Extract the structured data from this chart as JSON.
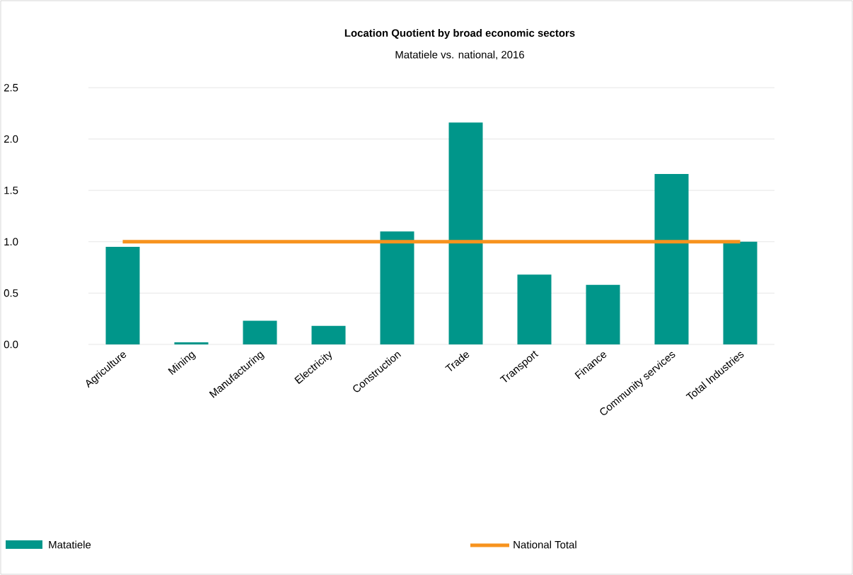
{
  "chart_data": {
    "type": "bar",
    "title": "Location Quotient by broad economic sectors",
    "subtitle": "Matatiele vs. national, 2016",
    "categories": [
      "Agriculture",
      "Mining",
      "Manufacturing",
      "Electricity",
      "Construction",
      "Trade",
      "Transport",
      "Finance",
      "Community services",
      "Total Industries"
    ],
    "series": [
      {
        "name": "Matatiele",
        "color": "#00968a",
        "values": [
          0.95,
          0.02,
          0.23,
          0.18,
          1.1,
          2.16,
          0.68,
          0.58,
          1.66,
          1.0
        ]
      },
      {
        "name": "National Total",
        "type": "line",
        "color": "#f7931e",
        "values": [
          1.0,
          1.0,
          1.0,
          1.0,
          1.0,
          1.0,
          1.0,
          1.0,
          1.0,
          1.0
        ]
      }
    ],
    "ylim": [
      0,
      2.5
    ],
    "yticks": [
      {
        "value": 0,
        "label": "0.0"
      },
      {
        "value": 0.5,
        "label": "0.5"
      },
      {
        "value": 1,
        "label": "1.0"
      },
      {
        "value": 1.5,
        "label": "1.5"
      },
      {
        "value": 2,
        "label": "2.0"
      },
      {
        "value": 2.5,
        "label": "2.5"
      }
    ],
    "grid": "y",
    "legend": "bottom"
  }
}
